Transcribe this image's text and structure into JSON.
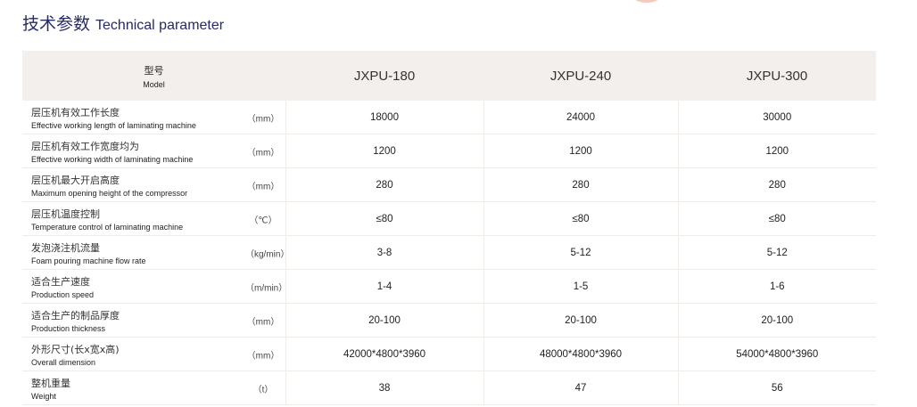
{
  "title": {
    "cn": "技术参数",
    "en": "Technical parameter"
  },
  "header": {
    "label_cn": "型号",
    "label_en": "Model",
    "models": [
      "JXPU-180",
      "JXPU-240",
      "JXPU-300"
    ]
  },
  "rows": [
    {
      "cn": "层压机有效工作长度",
      "en": "Effective working length of laminating machine",
      "unit": "（mm）",
      "values": [
        "18000",
        "24000",
        "30000"
      ]
    },
    {
      "cn": "层压机有效工作宽度均为",
      "en": "Effective working width of laminating machine",
      "unit": "（mm）",
      "values": [
        "1200",
        "1200",
        "1200"
      ]
    },
    {
      "cn": "层压机最大开启高度",
      "en": "Maximum opening height of the compressor",
      "unit": "（mm）",
      "values": [
        "280",
        "280",
        "280"
      ]
    },
    {
      "cn": "层压机温度控制",
      "en": "Temperature control of laminating machine",
      "unit": "（℃）",
      "values": [
        "≤80",
        "≤80",
        "≤80"
      ]
    },
    {
      "cn": "发泡浇注机流量",
      "en": "Foam pouring machine flow rate",
      "unit": "（kg/min）",
      "values": [
        "3-8",
        "5-12",
        "5-12"
      ]
    },
    {
      "cn": "适合生产速度",
      "en": "Production speed",
      "unit": "（m/min）",
      "values": [
        "1-4",
        "1-5",
        "1-6"
      ]
    },
    {
      "cn": "适合生产的制品厚度",
      "en": "Production thickness",
      "unit": "（mm）",
      "values": [
        "20-100",
        "20-100",
        "20-100"
      ]
    },
    {
      "cn": "外形尺寸(长x宽x高)",
      "en": "Overall dimension",
      "unit": "（mm）",
      "values": [
        "42000*4800*3960",
        "48000*4800*3960",
        "54000*4800*3960"
      ]
    },
    {
      "cn": "整机重量",
      "en": "Weight",
      "unit": "（t）",
      "values": [
        "38",
        "47",
        "56"
      ]
    }
  ]
}
